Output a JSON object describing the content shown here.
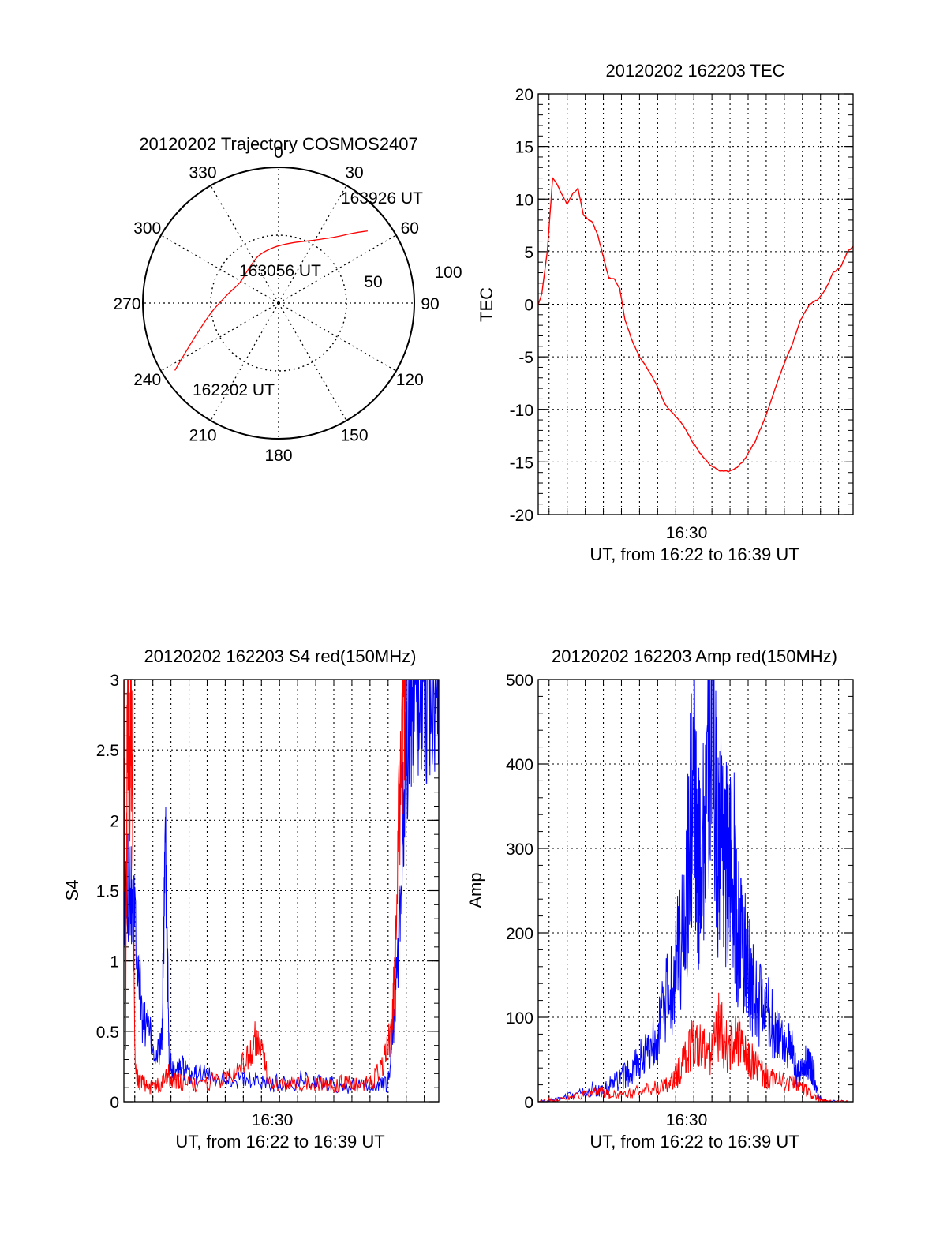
{
  "chart_data": [
    {
      "type": "polar",
      "title": "20120202 Trajectory COSMOS2407",
      "azimuth_labels": [
        "0",
        "30",
        "60",
        "90",
        "120",
        "150",
        "180",
        "210",
        "240",
        "270",
        "300",
        "330"
      ],
      "ring_labels": [
        "50",
        "100"
      ],
      "elevation_rings": [
        50,
        100
      ],
      "trajectory": {
        "color": "#ff0000",
        "points": [
          {
            "az": 237,
            "el": 8
          },
          {
            "az": 242,
            "el": 20
          },
          {
            "az": 250,
            "el": 33
          },
          {
            "az": 262,
            "el": 45
          },
          {
            "az": 278,
            "el": 55
          },
          {
            "az": 298,
            "el": 61
          },
          {
            "az": 318,
            "el": 60
          },
          {
            "az": 337,
            "el": 56
          },
          {
            "az": 355,
            "el": 53
          },
          {
            "az": 13,
            "el": 49
          },
          {
            "az": 28,
            "el": 43
          },
          {
            "az": 40,
            "el": 33
          },
          {
            "az": 47,
            "el": 22
          },
          {
            "az": 51,
            "el": 14
          }
        ]
      },
      "annotations": [
        {
          "text": "163926 UT"
        },
        {
          "text": "163056 UT"
        },
        {
          "text": "162202 UT"
        }
      ]
    },
    {
      "type": "line",
      "title": "20120202 162203 TEC",
      "xlabel": "UT, from 16:22 to 16:39 UT",
      "ylabel": "TEC",
      "xtick_labels": [
        "16:30"
      ],
      "ytick_labels": [
        "20",
        "15",
        "10",
        "5",
        "0",
        "-5",
        "-10",
        "-15",
        "-20"
      ],
      "xlim": [
        0,
        17.4
      ],
      "ylim": [
        -20,
        20
      ],
      "grid": true,
      "series": [
        {
          "color": "#ff0000",
          "x": [
            0,
            0.2,
            0.5,
            0.8,
            1.0,
            1.3,
            1.6,
            1.9,
            2.2,
            2.5,
            2.8,
            3.0,
            3.3,
            3.6,
            3.9,
            4.2,
            4.5,
            4.8,
            5.2,
            5.6,
            6.0,
            6.5,
            7.0,
            7.5,
            8.0,
            8.5,
            9.0,
            9.5,
            10.0,
            10.5,
            11.0,
            11.3,
            11.6,
            12.0,
            12.5,
            13.0,
            13.5,
            14.0,
            14.5,
            15.0,
            15.5,
            15.9,
            16.3,
            16.7,
            17.1,
            17.4
          ],
          "values": [
            0,
            1,
            5,
            12,
            11.5,
            10.5,
            9.5,
            10.5,
            11,
            8.5,
            8,
            7.8,
            6.5,
            4.5,
            2.5,
            2.4,
            1.5,
            -1.5,
            -3.5,
            -5,
            -6,
            -7.5,
            -9.5,
            -10.5,
            -11.5,
            -13,
            -14.3,
            -15.3,
            -15.8,
            -15.9,
            -15.5,
            -15,
            -14.2,
            -13,
            -11,
            -8.5,
            -6,
            -4,
            -1.5,
            0,
            0.5,
            1.5,
            3,
            3.5,
            5,
            5.5
          ]
        }
      ]
    },
    {
      "type": "line",
      "title": "20120202 162203 S4 red(150MHz)",
      "xlabel": "UT, from 16:22 to 16:39 UT",
      "ylabel": "S4",
      "xtick_labels": [
        "16:30"
      ],
      "ytick_labels": [
        "3",
        "2.5",
        "2",
        "1.5",
        "1",
        "0.5",
        "0"
      ],
      "xlim": [
        0,
        17.4
      ],
      "ylim": [
        0,
        3
      ],
      "grid": true,
      "series": [
        {
          "color": "#0000ff",
          "x": [
            0,
            0.3,
            0.6,
            1.0,
            1.4,
            1.8,
            2.1,
            2.3,
            2.5,
            2.8,
            3.2,
            3.6,
            4.0,
            5.0,
            6.0,
            7.0,
            8.0,
            9.0,
            10.0,
            11.0,
            12.0,
            13.0,
            14.0,
            14.6,
            15.0,
            15.3,
            15.6,
            15.9,
            16.2,
            16.6,
            17.0,
            17.4
          ],
          "values": [
            1.3,
            1.6,
            1.4,
            0.6,
            0.5,
            0.3,
            0.45,
            1.8,
            0.3,
            0.2,
            0.25,
            0.18,
            0.2,
            0.18,
            0.16,
            0.15,
            0.14,
            0.12,
            0.17,
            0.13,
            0.12,
            0.11,
            0.12,
            0.12,
            0.7,
            1.5,
            2.5,
            3.0,
            3.0,
            3.0,
            3.0,
            3.0
          ]
        },
        {
          "color": "#ff0000",
          "x": [
            0,
            0.1,
            0.2,
            0.3,
            0.4,
            0.6,
            0.8,
            1.2,
            1.6,
            2.0,
            2.4,
            2.8,
            3.2,
            4.0,
            5.0,
            6.0,
            6.8,
            7.3,
            7.6,
            8.0,
            9.0,
            10.0,
            11.0,
            12.0,
            13.0,
            13.8,
            14.4,
            14.8,
            15.0,
            15.3,
            15.6
          ],
          "values": [
            3.0,
            0.5,
            3.0,
            2.0,
            3.0,
            0.3,
            0.15,
            0.13,
            0.1,
            0.12,
            0.2,
            0.15,
            0.13,
            0.12,
            0.15,
            0.2,
            0.3,
            0.45,
            0.35,
            0.15,
            0.12,
            0.13,
            0.12,
            0.13,
            0.12,
            0.15,
            0.3,
            0.5,
            1.0,
            2.5,
            3.0
          ]
        }
      ]
    },
    {
      "type": "line",
      "title": "20120202 162203 Amp red(150MHz)",
      "xlabel": "UT, from 16:22 to 16:39 UT",
      "ylabel": "Amp",
      "xtick_labels": [
        "16:30"
      ],
      "ytick_labels": [
        "500",
        "400",
        "300",
        "200",
        "100",
        "0"
      ],
      "xlim": [
        0,
        17.4
      ],
      "ylim": [
        0,
        500
      ],
      "grid": true,
      "series": [
        {
          "color": "#0000ff",
          "x": [
            0,
            1,
            2,
            3,
            3.5,
            4,
            4.5,
            5,
            5.5,
            6,
            6.5,
            7,
            7.5,
            8,
            8.3,
            8.6,
            8.8,
            9.0,
            9.3,
            9.6,
            9.9,
            10.2,
            10.5,
            10.8,
            11.0,
            11.3,
            11.7,
            12.0,
            12.5,
            13.0,
            13.5,
            14.0,
            14.3,
            14.6,
            14.9,
            15.2,
            15.5,
            16.0,
            17.4
          ],
          "values": [
            0,
            2,
            8,
            15,
            12,
            20,
            25,
            35,
            45,
            60,
            80,
            110,
            150,
            200,
            280,
            400,
            260,
            300,
            350,
            480,
            300,
            330,
            260,
            280,
            200,
            180,
            150,
            120,
            110,
            90,
            75,
            60,
            30,
            40,
            50,
            35,
            5,
            0,
            0
          ]
        },
        {
          "color": "#ff0000",
          "x": [
            0,
            1,
            2,
            3,
            3.5,
            4,
            5,
            6,
            7,
            7.5,
            8,
            8.5,
            9,
            9.5,
            10,
            10.5,
            11,
            11.5,
            12,
            12.5,
            13,
            14,
            14.5,
            15,
            15.5,
            16,
            17.4
          ],
          "values": [
            0,
            3,
            6,
            10,
            12,
            8,
            10,
            14,
            18,
            25,
            45,
            70,
            65,
            55,
            90,
            60,
            75,
            50,
            45,
            30,
            25,
            22,
            18,
            10,
            3,
            0,
            0
          ]
        }
      ]
    }
  ]
}
